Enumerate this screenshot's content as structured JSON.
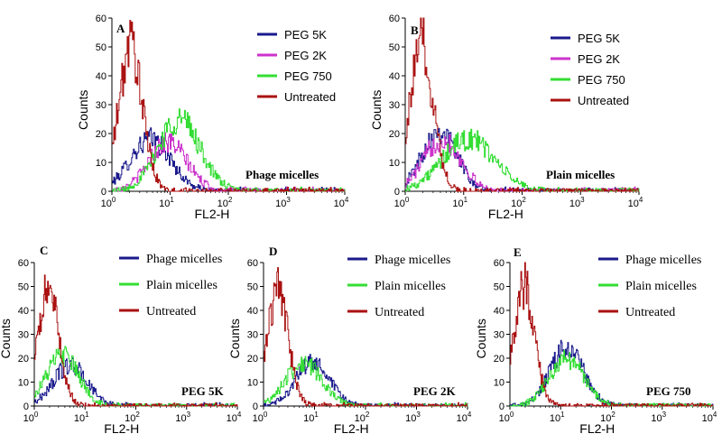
{
  "chart_data": [
    {
      "panel": "A",
      "type": "line",
      "xlabel": "FL2-H",
      "ylabel": "Counts",
      "xscale": "log",
      "xlim": [
        1,
        10000
      ],
      "ylim": [
        0,
        60
      ],
      "xticks": [
        "10^0",
        "10^1",
        "10^2",
        "10^3",
        "10^4"
      ],
      "yticks": [
        0,
        10,
        20,
        30,
        40,
        50,
        60
      ],
      "annotation": "Phage micelles",
      "legend_position": "top-right",
      "series": [
        {
          "name": "PEG 5K",
          "color": "#1a1a8c",
          "peak_x": 4.5,
          "peak_y": 18,
          "spread": 0.35
        },
        {
          "name": "PEG 2K",
          "color": "#cc33cc",
          "peak_x": 9,
          "peak_y": 17,
          "spread": 0.33
        },
        {
          "name": "PEG 750",
          "color": "#33dd33",
          "peak_x": 14,
          "peak_y": 25,
          "spread": 0.36
        },
        {
          "name": "Untreated",
          "color": "#aa1111",
          "peak_x": 2.2,
          "peak_y": 52,
          "spread": 0.22
        }
      ]
    },
    {
      "panel": "B",
      "type": "line",
      "xlabel": "FL2-H",
      "ylabel": "Counts",
      "xscale": "log",
      "xlim": [
        1,
        10000
      ],
      "ylim": [
        0,
        60
      ],
      "xticks": [
        "10^0",
        "10^1",
        "10^2",
        "10^3",
        "10^4"
      ],
      "yticks": [
        0,
        10,
        20,
        30,
        40,
        50,
        60
      ],
      "annotation": "Plain micelles",
      "legend_position": "top-right",
      "series": [
        {
          "name": "PEG 5K",
          "color": "#1a1a8c",
          "peak_x": 3.8,
          "peak_y": 21,
          "spread": 0.3
        },
        {
          "name": "PEG 2K",
          "color": "#cc33cc",
          "peak_x": 4.2,
          "peak_y": 18,
          "spread": 0.32
        },
        {
          "name": "PEG 750",
          "color": "#33dd33",
          "peak_x": 12,
          "peak_y": 18,
          "spread": 0.45
        },
        {
          "name": "Untreated",
          "color": "#aa1111",
          "peak_x": 2.0,
          "peak_y": 52,
          "spread": 0.22
        }
      ]
    },
    {
      "panel": "C",
      "type": "line",
      "xlabel": "FL2-H",
      "ylabel": "Counts",
      "xscale": "log",
      "xlim": [
        1,
        10000
      ],
      "ylim": [
        0,
        60
      ],
      "xticks": [
        "10^0",
        "10^1",
        "10^2",
        "10^3",
        "10^4"
      ],
      "yticks": [
        0,
        10,
        20,
        30,
        40,
        50,
        60
      ],
      "annotation": "PEG 5K",
      "legend_position": "top-right",
      "series": [
        {
          "name": "Phage micelles",
          "color": "#1a1a8c",
          "peak_x": 5,
          "peak_y": 17,
          "spread": 0.33
        },
        {
          "name": "Plain micelles",
          "color": "#33dd33",
          "peak_x": 3.5,
          "peak_y": 21,
          "spread": 0.32
        },
        {
          "name": "Untreated",
          "color": "#aa1111",
          "peak_x": 2.0,
          "peak_y": 51,
          "spread": 0.22
        }
      ]
    },
    {
      "panel": "D",
      "type": "line",
      "xlabel": "FL2-H",
      "ylabel": "Counts",
      "xscale": "log",
      "xlim": [
        1,
        10000
      ],
      "ylim": [
        0,
        60
      ],
      "xticks": [
        "10^0",
        "10^1",
        "10^2",
        "10^3",
        "10^4"
      ],
      "yticks": [
        0,
        10,
        20,
        30,
        40,
        50,
        60
      ],
      "annotation": "PEG 2K",
      "legend_position": "top-right",
      "series": [
        {
          "name": "Phage micelles",
          "color": "#1a1a8c",
          "peak_x": 9,
          "peak_y": 18,
          "spread": 0.33
        },
        {
          "name": "Plain micelles",
          "color": "#33dd33",
          "peak_x": 6,
          "peak_y": 18,
          "spread": 0.35
        },
        {
          "name": "Untreated",
          "color": "#aa1111",
          "peak_x": 2.0,
          "peak_y": 51,
          "spread": 0.22
        }
      ]
    },
    {
      "panel": "E",
      "type": "line",
      "xlabel": "FL2-H",
      "ylabel": "Counts",
      "xscale": "log",
      "xlim": [
        1,
        10000
      ],
      "ylim": [
        0,
        60
      ],
      "xticks": [
        "10^0",
        "10^1",
        "10^2",
        "10^3",
        "10^4"
      ],
      "yticks": [
        0,
        10,
        20,
        30,
        40,
        50,
        60
      ],
      "annotation": "PEG 750",
      "legend_position": "top-right",
      "series": [
        {
          "name": "Phage micelles",
          "color": "#1a1a8c",
          "peak_x": 13,
          "peak_y": 24,
          "spread": 0.33
        },
        {
          "name": "Plain micelles",
          "color": "#33dd33",
          "peak_x": 13,
          "peak_y": 20,
          "spread": 0.34
        },
        {
          "name": "Untreated",
          "color": "#aa1111",
          "peak_x": 2.0,
          "peak_y": 51,
          "spread": 0.22
        }
      ]
    }
  ]
}
